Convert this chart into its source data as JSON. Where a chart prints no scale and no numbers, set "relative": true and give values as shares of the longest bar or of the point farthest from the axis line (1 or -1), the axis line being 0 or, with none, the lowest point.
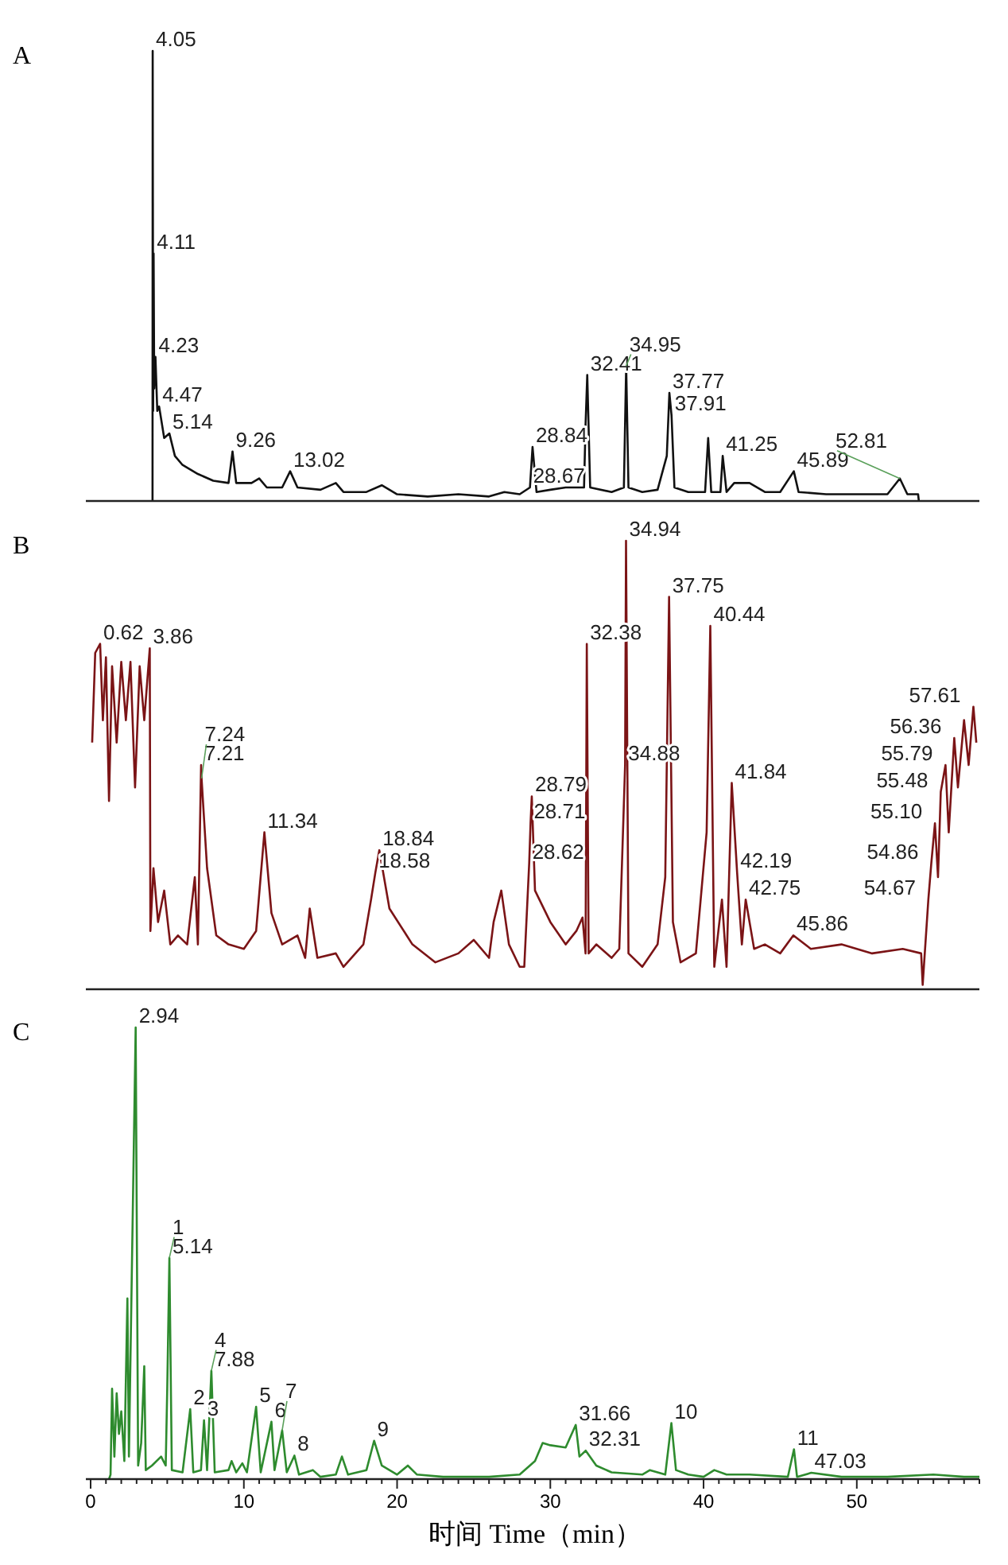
{
  "chart_data": [
    {
      "type": "line",
      "title": "A",
      "relative": true,
      "xlim": [
        0,
        58
      ],
      "tick_labels": false,
      "series": [
        {
          "color": "#111111",
          "x": [
            4.04,
            4.05,
            4.08,
            4.11,
            4.15,
            4.23,
            4.35,
            4.47,
            4.8,
            5.14,
            5.5,
            6,
            7,
            8,
            9,
            9.26,
            9.5,
            10.5,
            11,
            11.5,
            12.5,
            13.02,
            13.5,
            15,
            16,
            16.5,
            18,
            19,
            20,
            22,
            24,
            26,
            27,
            28,
            28.67,
            28.84,
            29.1,
            30,
            31,
            32.2,
            32.3,
            32.41,
            32.6,
            34,
            34.8,
            34.95,
            35.1,
            36,
            37,
            37.6,
            37.77,
            37.91,
            38.1,
            39,
            40.1,
            40.3,
            40.5,
            41.1,
            41.25,
            41.5,
            42,
            43,
            44,
            45,
            45.89,
            46.2,
            48,
            50,
            52,
            52.81,
            53.3,
            54,
            54.05
          ],
          "values": [
            0,
            1,
            0.2,
            0.55,
            0.25,
            0.32,
            0.2,
            0.21,
            0.14,
            0.15,
            0.1,
            0.08,
            0.06,
            0.045,
            0.04,
            0.11,
            0.04,
            0.04,
            0.05,
            0.03,
            0.03,
            0.066,
            0.03,
            0.025,
            0.04,
            0.02,
            0.02,
            0.035,
            0.015,
            0.01,
            0.015,
            0.01,
            0.02,
            0.015,
            0.03,
            0.12,
            0.02,
            0.025,
            0.03,
            0.03,
            0.17,
            0.28,
            0.03,
            0.02,
            0.03,
            0.3,
            0.03,
            0.02,
            0.025,
            0.1,
            0.24,
            0.19,
            0.03,
            0.02,
            0.02,
            0.14,
            0.02,
            0.02,
            0.1,
            0.02,
            0.04,
            0.04,
            0.02,
            0.02,
            0.066,
            0.02,
            0.015,
            0.015,
            0.015,
            0.05,
            0.015,
            0.015,
            0
          ]
        }
      ],
      "annotations": [
        {
          "text": "4.05",
          "x": 4.05,
          "y": 1
        },
        {
          "text": "4.11",
          "x": 4.11,
          "y": 0.55
        },
        {
          "text": "4.23",
          "x": 4.23,
          "y": 0.32
        },
        {
          "text": "4.47",
          "x": 4.47,
          "y": 0.21
        },
        {
          "text": "5.14",
          "x": 5.14,
          "y": 0.15
        },
        {
          "text": "9.26",
          "x": 9.26,
          "y": 0.11
        },
        {
          "text": "13.02",
          "x": 13.02,
          "y": 0.066
        },
        {
          "text": "28.67",
          "x": 28.67,
          "y": 0.03
        },
        {
          "text": "28.84",
          "x": 28.84,
          "y": 0.12
        },
        {
          "text": "32.41",
          "x": 32.41,
          "y": 0.28
        },
        {
          "text": "34.95",
          "x": 34.95,
          "y": 0.3
        },
        {
          "text": "37.77",
          "x": 37.77,
          "y": 0.24
        },
        {
          "text": "37.91",
          "x": 37.91,
          "y": 0.19
        },
        {
          "text": "41.25",
          "x": 41.25,
          "y": 0.1
        },
        {
          "text": "45.89",
          "x": 45.89,
          "y": 0.066
        },
        {
          "text": "52.81",
          "x": 52.81,
          "y": 0.05
        }
      ]
    },
    {
      "type": "line",
      "title": "B",
      "relative": true,
      "xlim": [
        0,
        58
      ],
      "tick_labels": false,
      "series": [
        {
          "color": "#7b1416",
          "x": [
            0.1,
            0.3,
            0.62,
            0.8,
            1,
            1.2,
            1.4,
            1.7,
            2,
            2.3,
            2.6,
            2.9,
            3.2,
            3.5,
            3.86,
            3.9,
            4.1,
            4.4,
            4.8,
            5.2,
            5.7,
            6.3,
            6.8,
            7.0,
            7.21,
            7.24,
            7.6,
            8.2,
            9,
            10,
            10.8,
            11.34,
            11.8,
            12.5,
            13.5,
            14,
            14.3,
            14.8,
            16,
            16.5,
            17.8,
            18.3,
            18.58,
            18.84,
            19.5,
            21,
            22.5,
            24,
            25,
            26,
            26.3,
            26.8,
            27.3,
            28,
            28.3,
            28.62,
            28.71,
            28.79,
            29,
            30,
            31,
            31.7,
            32.1,
            32.3,
            32.38,
            32.5,
            33,
            34,
            34.5,
            34.88,
            34.94,
            35.1,
            36,
            37,
            37.5,
            37.75,
            38,
            38.5,
            39.5,
            40.2,
            40.44,
            40.7,
            41.2,
            41.5,
            41.84,
            42.19,
            42.5,
            42.75,
            43.3,
            44,
            45,
            45.86,
            47,
            49,
            51,
            53,
            54.2,
            54.3,
            54.67,
            54.86,
            55.1,
            55.3,
            55.48,
            55.79,
            56,
            56.36,
            56.6,
            57,
            57.3,
            57.61,
            57.8
          ],
          "values": [
            0.55,
            0.75,
            0.77,
            0.6,
            0.74,
            0.42,
            0.72,
            0.55,
            0.73,
            0.6,
            0.73,
            0.45,
            0.72,
            0.6,
            0.76,
            0.13,
            0.27,
            0.15,
            0.22,
            0.1,
            0.12,
            0.1,
            0.25,
            0.1,
            0.5,
            0.47,
            0.27,
            0.12,
            0.1,
            0.09,
            0.13,
            0.35,
            0.17,
            0.1,
            0.12,
            0.07,
            0.18,
            0.07,
            0.08,
            0.05,
            0.1,
            0.2,
            0.26,
            0.31,
            0.18,
            0.1,
            0.06,
            0.08,
            0.11,
            0.07,
            0.15,
            0.22,
            0.1,
            0.05,
            0.05,
            0.28,
            0.37,
            0.43,
            0.22,
            0.15,
            0.1,
            0.13,
            0.16,
            0.08,
            0.77,
            0.08,
            0.1,
            0.07,
            0.09,
            0.5,
            1,
            0.08,
            0.05,
            0.1,
            0.25,
            0.875,
            0.15,
            0.06,
            0.08,
            0.35,
            0.81,
            0.05,
            0.2,
            0.05,
            0.46,
            0.26,
            0.1,
            0.2,
            0.09,
            0.1,
            0.08,
            0.12,
            0.09,
            0.1,
            0.08,
            0.09,
            0.08,
            0.01,
            0.2,
            0.28,
            0.37,
            0.25,
            0.44,
            0.5,
            0.35,
            0.56,
            0.45,
            0.6,
            0.5,
            0.63,
            0.55
          ]
        }
      ],
      "annotations": [
        {
          "text": "0.62",
          "x": 0.62,
          "y": 0.77
        },
        {
          "text": "3.86",
          "x": 3.86,
          "y": 0.76
        },
        {
          "text": "7.21",
          "x": 7.21,
          "y": 0.5
        },
        {
          "text": "7.24",
          "x": 7.24,
          "y": 0.47
        },
        {
          "text": "11.34",
          "x": 11.34,
          "y": 0.35
        },
        {
          "text": "18.58",
          "x": 18.58,
          "y": 0.26
        },
        {
          "text": "18.84",
          "x": 18.84,
          "y": 0.31
        },
        {
          "text": "28.62",
          "x": 28.62,
          "y": 0.28
        },
        {
          "text": "28.71",
          "x": 28.71,
          "y": 0.37
        },
        {
          "text": "28.79",
          "x": 28.79,
          "y": 0.43
        },
        {
          "text": "32.38",
          "x": 32.38,
          "y": 0.77
        },
        {
          "text": "34.88",
          "x": 34.88,
          "y": 0.5
        },
        {
          "text": "34.94",
          "x": 34.94,
          "y": 1
        },
        {
          "text": "37.75",
          "x": 37.75,
          "y": 0.875
        },
        {
          "text": "40.44",
          "x": 40.44,
          "y": 0.81
        },
        {
          "text": "41.84",
          "x": 41.84,
          "y": 0.46
        },
        {
          "text": "42.19",
          "x": 42.19,
          "y": 0.26
        },
        {
          "text": "42.75",
          "x": 42.75,
          "y": 0.2
        },
        {
          "text": "45.86",
          "x": 45.86,
          "y": 0.12
        },
        {
          "text": "54.67",
          "x": 54.67,
          "y": 0.2
        },
        {
          "text": "54.86",
          "x": 54.86,
          "y": 0.28
        },
        {
          "text": "55.10",
          "x": 55.1,
          "y": 0.37
        },
        {
          "text": "55.48",
          "x": 55.48,
          "y": 0.44
        },
        {
          "text": "55.79",
          "x": 55.79,
          "y": 0.5
        },
        {
          "text": "56.36",
          "x": 56.36,
          "y": 0.56
        },
        {
          "text": "57.61",
          "x": 57.61,
          "y": 0.63
        }
      ]
    },
    {
      "type": "line",
      "title": "C",
      "xlabel": "时间 Time（min）",
      "relative": true,
      "xlim": [
        0,
        58
      ],
      "tick_labels": "x",
      "xticks": [
        0,
        {
          "value": 1,
          "label": null
        },
        {
          "value": 2,
          "label": null
        },
        {
          "value": 3,
          "label": null
        },
        {
          "value": 4,
          "label": null
        },
        {
          "value": 5,
          "label": null
        },
        {
          "value": 6,
          "label": null
        },
        {
          "value": 7,
          "label": null
        },
        {
          "value": 8,
          "label": null
        },
        {
          "value": 9,
          "label": null
        },
        10,
        {
          "value": 11,
          "label": null
        },
        {
          "value": 12,
          "label": null
        },
        {
          "value": 13,
          "label": null
        },
        {
          "value": 14,
          "label": null
        },
        {
          "value": 15,
          "label": null
        },
        {
          "value": 16,
          "label": null
        },
        {
          "value": 17,
          "label": null
        },
        {
          "value": 18,
          "label": null
        },
        {
          "value": 19,
          "label": null
        },
        20,
        {
          "value": 21,
          "label": null
        },
        {
          "value": 22,
          "label": null
        },
        {
          "value": 23,
          "label": null
        },
        {
          "value": 24,
          "label": null
        },
        {
          "value": 25,
          "label": null
        },
        {
          "value": 26,
          "label": null
        },
        {
          "value": 27,
          "label": null
        },
        {
          "value": 28,
          "label": null
        },
        {
          "value": 29,
          "label": null
        },
        30,
        {
          "value": 31,
          "label": null
        },
        {
          "value": 32,
          "label": null
        },
        {
          "value": 33,
          "label": null
        },
        {
          "value": 34,
          "label": null
        },
        {
          "value": 35,
          "label": null
        },
        {
          "value": 36,
          "label": null
        },
        {
          "value": 37,
          "label": null
        },
        {
          "value": 38,
          "label": null
        },
        {
          "value": 39,
          "label": null
        },
        40,
        {
          "value": 41,
          "label": null
        },
        {
          "value": 42,
          "label": null
        },
        {
          "value": 43,
          "label": null
        },
        {
          "value": 44,
          "label": null
        },
        {
          "value": 45,
          "label": null
        },
        {
          "value": 46,
          "label": null
        },
        {
          "value": 47,
          "label": null
        },
        {
          "value": 48,
          "label": null
        },
        {
          "value": 49,
          "label": null
        },
        50,
        {
          "value": 51,
          "label": null
        },
        {
          "value": 52,
          "label": null
        },
        {
          "value": 53,
          "label": null
        },
        {
          "value": 54,
          "label": null
        },
        {
          "value": 55,
          "label": null
        },
        {
          "value": 56,
          "label": null
        },
        {
          "value": 57,
          "label": null
        },
        {
          "value": 58,
          "label": null
        }
      ],
      "series": [
        {
          "color": "#2e8b2e",
          "x": [
            1.2,
            1.3,
            1.4,
            1.55,
            1.7,
            1.85,
            2.0,
            2.2,
            2.4,
            2.5,
            2.94,
            3.1,
            3.3,
            3.5,
            3.6,
            4,
            4.6,
            4.9,
            5.0,
            5.14,
            5.3,
            6,
            6.5,
            6.7,
            7.2,
            7.4,
            7.6,
            7.88,
            8.1,
            9,
            9.2,
            9.5,
            9.9,
            10.2,
            10.8,
            11.1,
            11.8,
            12.0,
            12.5,
            12.8,
            13.3,
            13.6,
            14.5,
            15,
            16,
            16.4,
            16.8,
            18,
            18.5,
            19,
            20,
            20.7,
            21.3,
            23,
            26,
            28,
            29,
            29.5,
            30,
            31,
            31.66,
            31.9,
            32.31,
            33,
            34,
            36,
            36.5,
            37.5,
            37.9,
            38.2,
            39,
            40,
            40.7,
            41.5,
            43,
            45.5,
            45.9,
            46.1,
            47.03,
            49,
            52,
            55,
            57,
            58
          ],
          "values": [
            0,
            0.01,
            0.2,
            0.05,
            0.19,
            0.1,
            0.15,
            0.04,
            0.4,
            0.05,
            1,
            0.03,
            0.08,
            0.25,
            0.02,
            0.03,
            0.05,
            0.03,
            0.2,
            0.49,
            0.02,
            0.015,
            0.155,
            0.015,
            0.02,
            0.13,
            0.02,
            0.24,
            0.015,
            0.02,
            0.04,
            0.015,
            0.035,
            0.015,
            0.16,
            0.015,
            0.127,
            0.02,
            0.108,
            0.015,
            0.052,
            0.01,
            0.02,
            0.005,
            0.01,
            0.05,
            0.01,
            0.02,
            0.085,
            0.03,
            0.01,
            0.03,
            0.01,
            0.005,
            0.005,
            0.01,
            0.04,
            0.08,
            0.075,
            0.07,
            0.12,
            0.05,
            0.063,
            0.03,
            0.015,
            0.01,
            0.02,
            0.01,
            0.124,
            0.02,
            0.01,
            0.005,
            0.02,
            0.01,
            0.01,
            0.005,
            0.066,
            0.005,
            0.014,
            0.005,
            0.005,
            0.01,
            0.005,
            0.005
          ]
        }
      ],
      "annotations": [
        {
          "text": "2.94",
          "x": 2.94,
          "y": 1
        },
        {
          "text": "5.14",
          "x": 5.14,
          "y": 0.49
        },
        {
          "text": "1",
          "x": 5.14,
          "y": 0.49
        },
        {
          "text": "2",
          "x": 6.5,
          "y": 0.155
        },
        {
          "text": "3",
          "x": 7.4,
          "y": 0.13
        },
        {
          "text": "7.88",
          "x": 7.88,
          "y": 0.24
        },
        {
          "text": "4",
          "x": 7.88,
          "y": 0.24
        },
        {
          "text": "5",
          "x": 10.8,
          "y": 0.16
        },
        {
          "text": "6",
          "x": 11.8,
          "y": 0.127
        },
        {
          "text": "7",
          "x": 12.5,
          "y": 0.108
        },
        {
          "text": "8",
          "x": 13.3,
          "y": 0.052
        },
        {
          "text": "9",
          "x": 18.5,
          "y": 0.085
        },
        {
          "text": "31.66",
          "x": 31.66,
          "y": 0.12
        },
        {
          "text": "32.31",
          "x": 32.31,
          "y": 0.063
        },
        {
          "text": "10",
          "x": 37.9,
          "y": 0.124
        },
        {
          "text": "11",
          "x": 45.9,
          "y": 0.066
        },
        {
          "text": "47.03",
          "x": 47.03,
          "y": 0.014
        }
      ]
    }
  ]
}
